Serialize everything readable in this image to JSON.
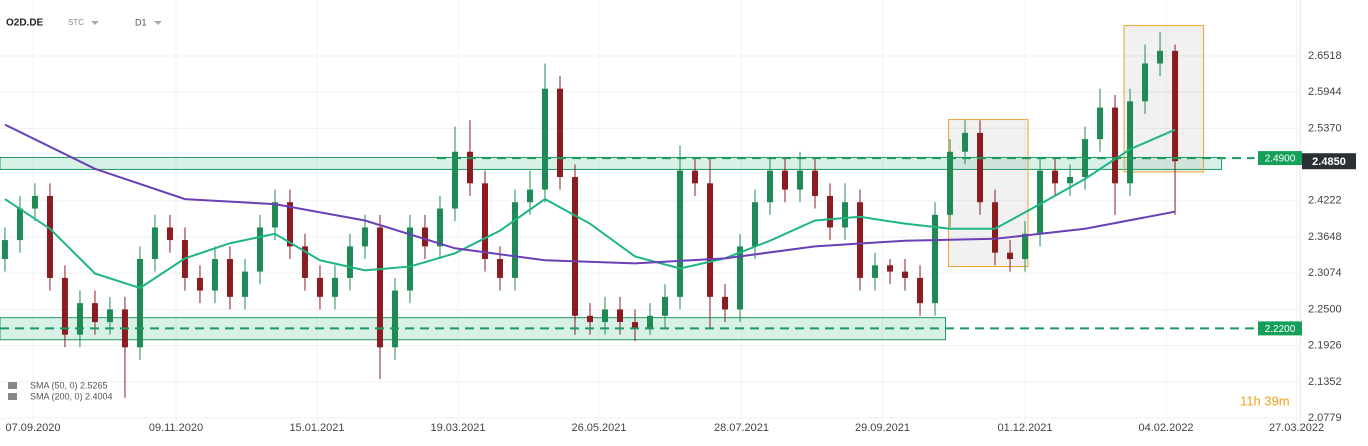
{
  "header": {
    "symbol": "O2D.DE",
    "market": "STC",
    "interval": "D1"
  },
  "timer": "11h 39m",
  "chart_data": {
    "type": "candlestick",
    "xlim": [
      -0.33,
      86.33
    ],
    "ylim": [
      2.0589,
      2.7406
    ],
    "xticks": [
      {
        "value": 1.87,
        "label": "07.09.2020"
      },
      {
        "value": 11.4,
        "label": "09.11.2020"
      },
      {
        "value": 20.8,
        "label": "15.01.2021"
      },
      {
        "value": 30.2,
        "label": "19.03.2021"
      },
      {
        "value": 39.6,
        "label": "26.05.2021"
      },
      {
        "value": 49.1,
        "label": "28.07.2021"
      },
      {
        "value": 58.5,
        "label": "29.09.2021"
      },
      {
        "value": 68,
        "label": "01.12.2021"
      },
      {
        "value": 77.4,
        "label": "04.02.2022"
      },
      {
        "value": 86.1,
        "label": "27.03.2022"
      }
    ],
    "yticks": [
      2.6518,
      2.5944,
      {
        "value": 2.537,
        "label": "2.5370"
      },
      2.4222,
      2.3648,
      2.3074,
      {
        "value": 2.25,
        "label": "2.2500"
      },
      2.1926,
      2.1352,
      2.0779
    ],
    "grid": true,
    "up_color": "#1f8a55",
    "down_color": "#8a1c22",
    "open": [
      2.33,
      2.36,
      2.41,
      2.43,
      2.3,
      2.21,
      2.26,
      2.23,
      2.25,
      2.19,
      2.33,
      2.38,
      2.36,
      2.3,
      2.28,
      2.33,
      2.27,
      2.31,
      2.38,
      2.42,
      2.35,
      2.3,
      2.27,
      2.3,
      2.35,
      2.38,
      2.19,
      2.28,
      2.38,
      2.35,
      2.41,
      2.5,
      2.45,
      2.33,
      2.3,
      2.42,
      2.44,
      2.6,
      2.46,
      2.24,
      2.23,
      2.25,
      2.23,
      2.22,
      2.24,
      2.27,
      2.47,
      2.45,
      2.27,
      2.25,
      2.35,
      2.42,
      2.47,
      2.44,
      2.47,
      2.43,
      2.38,
      2.42,
      2.3,
      2.32,
      2.31,
      2.3,
      2.26,
      2.4,
      2.5,
      2.53,
      2.42,
      2.34,
      2.33,
      2.37,
      2.47,
      2.45,
      2.46,
      2.52,
      2.57,
      2.45,
      2.58,
      2.64,
      2.66
    ],
    "high": [
      2.38,
      2.43,
      2.45,
      2.45,
      2.32,
      2.28,
      2.28,
      2.27,
      2.27,
      2.35,
      2.4,
      2.4,
      2.38,
      2.32,
      2.35,
      2.35,
      2.33,
      2.4,
      2.44,
      2.44,
      2.37,
      2.32,
      2.32,
      2.37,
      2.4,
      2.4,
      2.3,
      2.4,
      2.4,
      2.43,
      2.54,
      2.55,
      2.47,
      2.35,
      2.44,
      2.47,
      2.64,
      2.62,
      2.48,
      2.26,
      2.27,
      2.27,
      2.25,
      2.26,
      2.29,
      2.51,
      2.49,
      2.49,
      2.29,
      2.37,
      2.44,
      2.49,
      2.49,
      2.5,
      2.49,
      2.45,
      2.45,
      2.44,
      2.34,
      2.33,
      2.33,
      2.32,
      2.42,
      2.52,
      2.55,
      2.55,
      2.44,
      2.36,
      2.39,
      2.49,
      2.49,
      2.48,
      2.54,
      2.6,
      2.59,
      2.6,
      2.67,
      2.69,
      2.67
    ],
    "low": [
      2.31,
      2.34,
      2.39,
      2.28,
      2.19,
      2.19,
      2.21,
      2.21,
      2.11,
      2.17,
      2.31,
      2.34,
      2.28,
      2.26,
      2.26,
      2.25,
      2.25,
      2.29,
      2.36,
      2.33,
      2.28,
      2.25,
      2.25,
      2.28,
      2.33,
      2.14,
      2.17,
      2.26,
      2.33,
      2.33,
      2.39,
      2.43,
      2.31,
      2.28,
      2.28,
      2.4,
      2.42,
      2.44,
      2.21,
      2.21,
      2.21,
      2.21,
      2.2,
      2.21,
      2.22,
      2.25,
      2.43,
      2.22,
      2.23,
      2.23,
      2.33,
      2.4,
      2.42,
      2.42,
      2.41,
      2.36,
      2.36,
      2.28,
      2.28,
      2.29,
      2.28,
      2.24,
      2.24,
      2.38,
      2.48,
      2.4,
      2.32,
      2.31,
      2.31,
      2.35,
      2.43,
      2.43,
      2.44,
      2.5,
      2.4,
      2.43,
      2.56,
      2.62,
      2.4
    ],
    "close": [
      2.36,
      2.41,
      2.43,
      2.3,
      2.21,
      2.26,
      2.23,
      2.25,
      2.19,
      2.33,
      2.38,
      2.36,
      2.3,
      2.28,
      2.33,
      2.27,
      2.31,
      2.38,
      2.42,
      2.35,
      2.3,
      2.27,
      2.3,
      2.35,
      2.38,
      2.19,
      2.28,
      2.38,
      2.35,
      2.41,
      2.5,
      2.45,
      2.33,
      2.3,
      2.42,
      2.44,
      2.6,
      2.46,
      2.24,
      2.23,
      2.25,
      2.23,
      2.22,
      2.24,
      2.27,
      2.47,
      2.45,
      2.27,
      2.25,
      2.35,
      2.42,
      2.47,
      2.44,
      2.47,
      2.43,
      2.38,
      2.42,
      2.3,
      2.32,
      2.31,
      2.3,
      2.26,
      2.4,
      2.5,
      2.53,
      2.42,
      2.34,
      2.33,
      2.37,
      2.47,
      2.45,
      2.46,
      2.52,
      2.57,
      2.45,
      2.58,
      2.64,
      2.66,
      2.485
    ],
    "series": [
      {
        "name": "SMA (50, 0) 2.5265",
        "color": "#1fb585",
        "x": [
          0,
          3,
          6,
          9,
          12,
          15,
          18,
          21,
          24,
          27,
          30,
          33,
          36,
          39,
          42,
          45,
          48,
          51,
          54,
          57,
          60,
          63,
          66,
          69,
          72,
          75,
          78
        ],
        "values": [
          2.425,
          2.378,
          2.307,
          2.284,
          2.331,
          2.355,
          2.37,
          2.328,
          2.312,
          2.318,
          2.339,
          2.375,
          2.425,
          2.386,
          2.334,
          2.315,
          2.331,
          2.359,
          2.391,
          2.397,
          2.386,
          2.378,
          2.378,
          2.417,
          2.457,
          2.504,
          2.535
        ]
      },
      {
        "name": "SMA (200, 0) 2.4004",
        "color": "#6b3fb5",
        "x": [
          0,
          6,
          12,
          18,
          24,
          30,
          36,
          42,
          48,
          54,
          60,
          66,
          72,
          78
        ],
        "values": [
          2.543,
          2.473,
          2.425,
          2.417,
          2.391,
          2.347,
          2.328,
          2.323,
          2.331,
          2.35,
          2.359,
          2.362,
          2.378,
          2.405
        ]
      }
    ],
    "zones": [
      {
        "x": [
          -0.33,
          81.1
        ],
        "y": [
          2.472,
          2.491
        ]
      },
      {
        "x": [
          -0.33,
          62.7
        ],
        "y": [
          2.202,
          2.237
        ]
      }
    ],
    "levels": [
      {
        "value": 2.49,
        "label": "2.4900",
        "x": [
          28.8,
          83.3
        ]
      },
      {
        "value": 2.22,
        "label": "2.2200",
        "x": [
          -0.33,
          83.3
        ]
      }
    ],
    "boxes": [
      {
        "x": [
          62.9,
          68.2
        ],
        "y": [
          2.318,
          2.551
        ]
      },
      {
        "x": [
          74.6,
          79.9
        ],
        "y": [
          2.468,
          2.7
        ]
      }
    ],
    "last_price": {
      "value": 2.485,
      "label": "2.4850"
    }
  }
}
